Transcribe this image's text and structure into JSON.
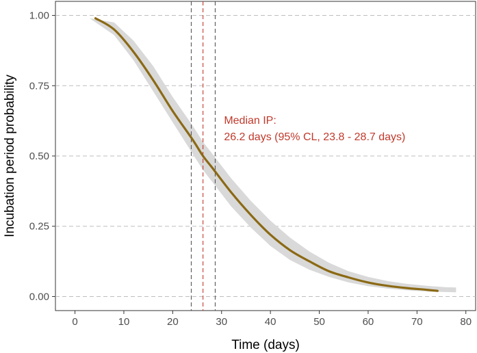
{
  "chart_data": {
    "type": "line",
    "title": "",
    "xlabel": "Time (days)",
    "ylabel": "Incubation period probability",
    "xlim": [
      -4,
      82
    ],
    "ylim": [
      -0.05,
      1.05
    ],
    "x_ticks": [
      0,
      10,
      20,
      30,
      40,
      50,
      60,
      70,
      80
    ],
    "x_tick_labels": [
      "0",
      "10",
      "20",
      "30",
      "40",
      "50",
      "60",
      "70",
      "80"
    ],
    "y_ticks": [
      0,
      0.25,
      0.5,
      0.75,
      1.0
    ],
    "y_tick_labels": [
      "0.00",
      "0.25",
      "0.50",
      "0.75",
      "1.00"
    ],
    "grid": "horizontal dashed at y ticks",
    "legend": "none",
    "series": [
      {
        "color": "#8b6914",
        "x": [
          4.2,
          8,
          12,
          16,
          20,
          24,
          26.2,
          28,
          32,
          36,
          40,
          44,
          48,
          52,
          56,
          60,
          64,
          68,
          72,
          74.2
        ],
        "y": [
          0.99,
          0.95,
          0.87,
          0.77,
          0.66,
          0.56,
          0.5,
          0.46,
          0.37,
          0.29,
          0.22,
          0.165,
          0.125,
          0.09,
          0.068,
          0.05,
          0.038,
          0.03,
          0.024,
          0.02
        ]
      }
    ],
    "confidence_band": {
      "color": "#d9d9d9",
      "x": [
        3,
        8,
        12,
        16,
        20,
        24,
        26.2,
        28,
        32,
        36,
        40,
        44,
        48,
        52,
        56,
        60,
        64,
        68,
        72,
        76,
        78
      ],
      "lower": [
        0.99,
        0.93,
        0.84,
        0.73,
        0.62,
        0.51,
        0.45,
        0.41,
        0.32,
        0.245,
        0.18,
        0.13,
        0.095,
        0.07,
        0.05,
        0.037,
        0.028,
        0.022,
        0.018,
        0.016,
        0.015
      ],
      "upper": [
        0.99,
        0.975,
        0.91,
        0.82,
        0.71,
        0.61,
        0.55,
        0.51,
        0.42,
        0.34,
        0.27,
        0.21,
        0.16,
        0.12,
        0.09,
        0.07,
        0.055,
        0.045,
        0.038,
        0.033,
        0.032
      ]
    },
    "vertical_lines": [
      {
        "x": 23.8,
        "color": "#555555"
      },
      {
        "x": 26.2,
        "color": "#c0392b"
      },
      {
        "x": 28.7,
        "color": "#555555"
      }
    ],
    "annotation": {
      "line1": "Median IP:",
      "line2": "26.2 days (95% CL, 23.8 - 28.7 days)",
      "color": "#c0392b",
      "x": 30.5,
      "y": 0.6
    }
  }
}
